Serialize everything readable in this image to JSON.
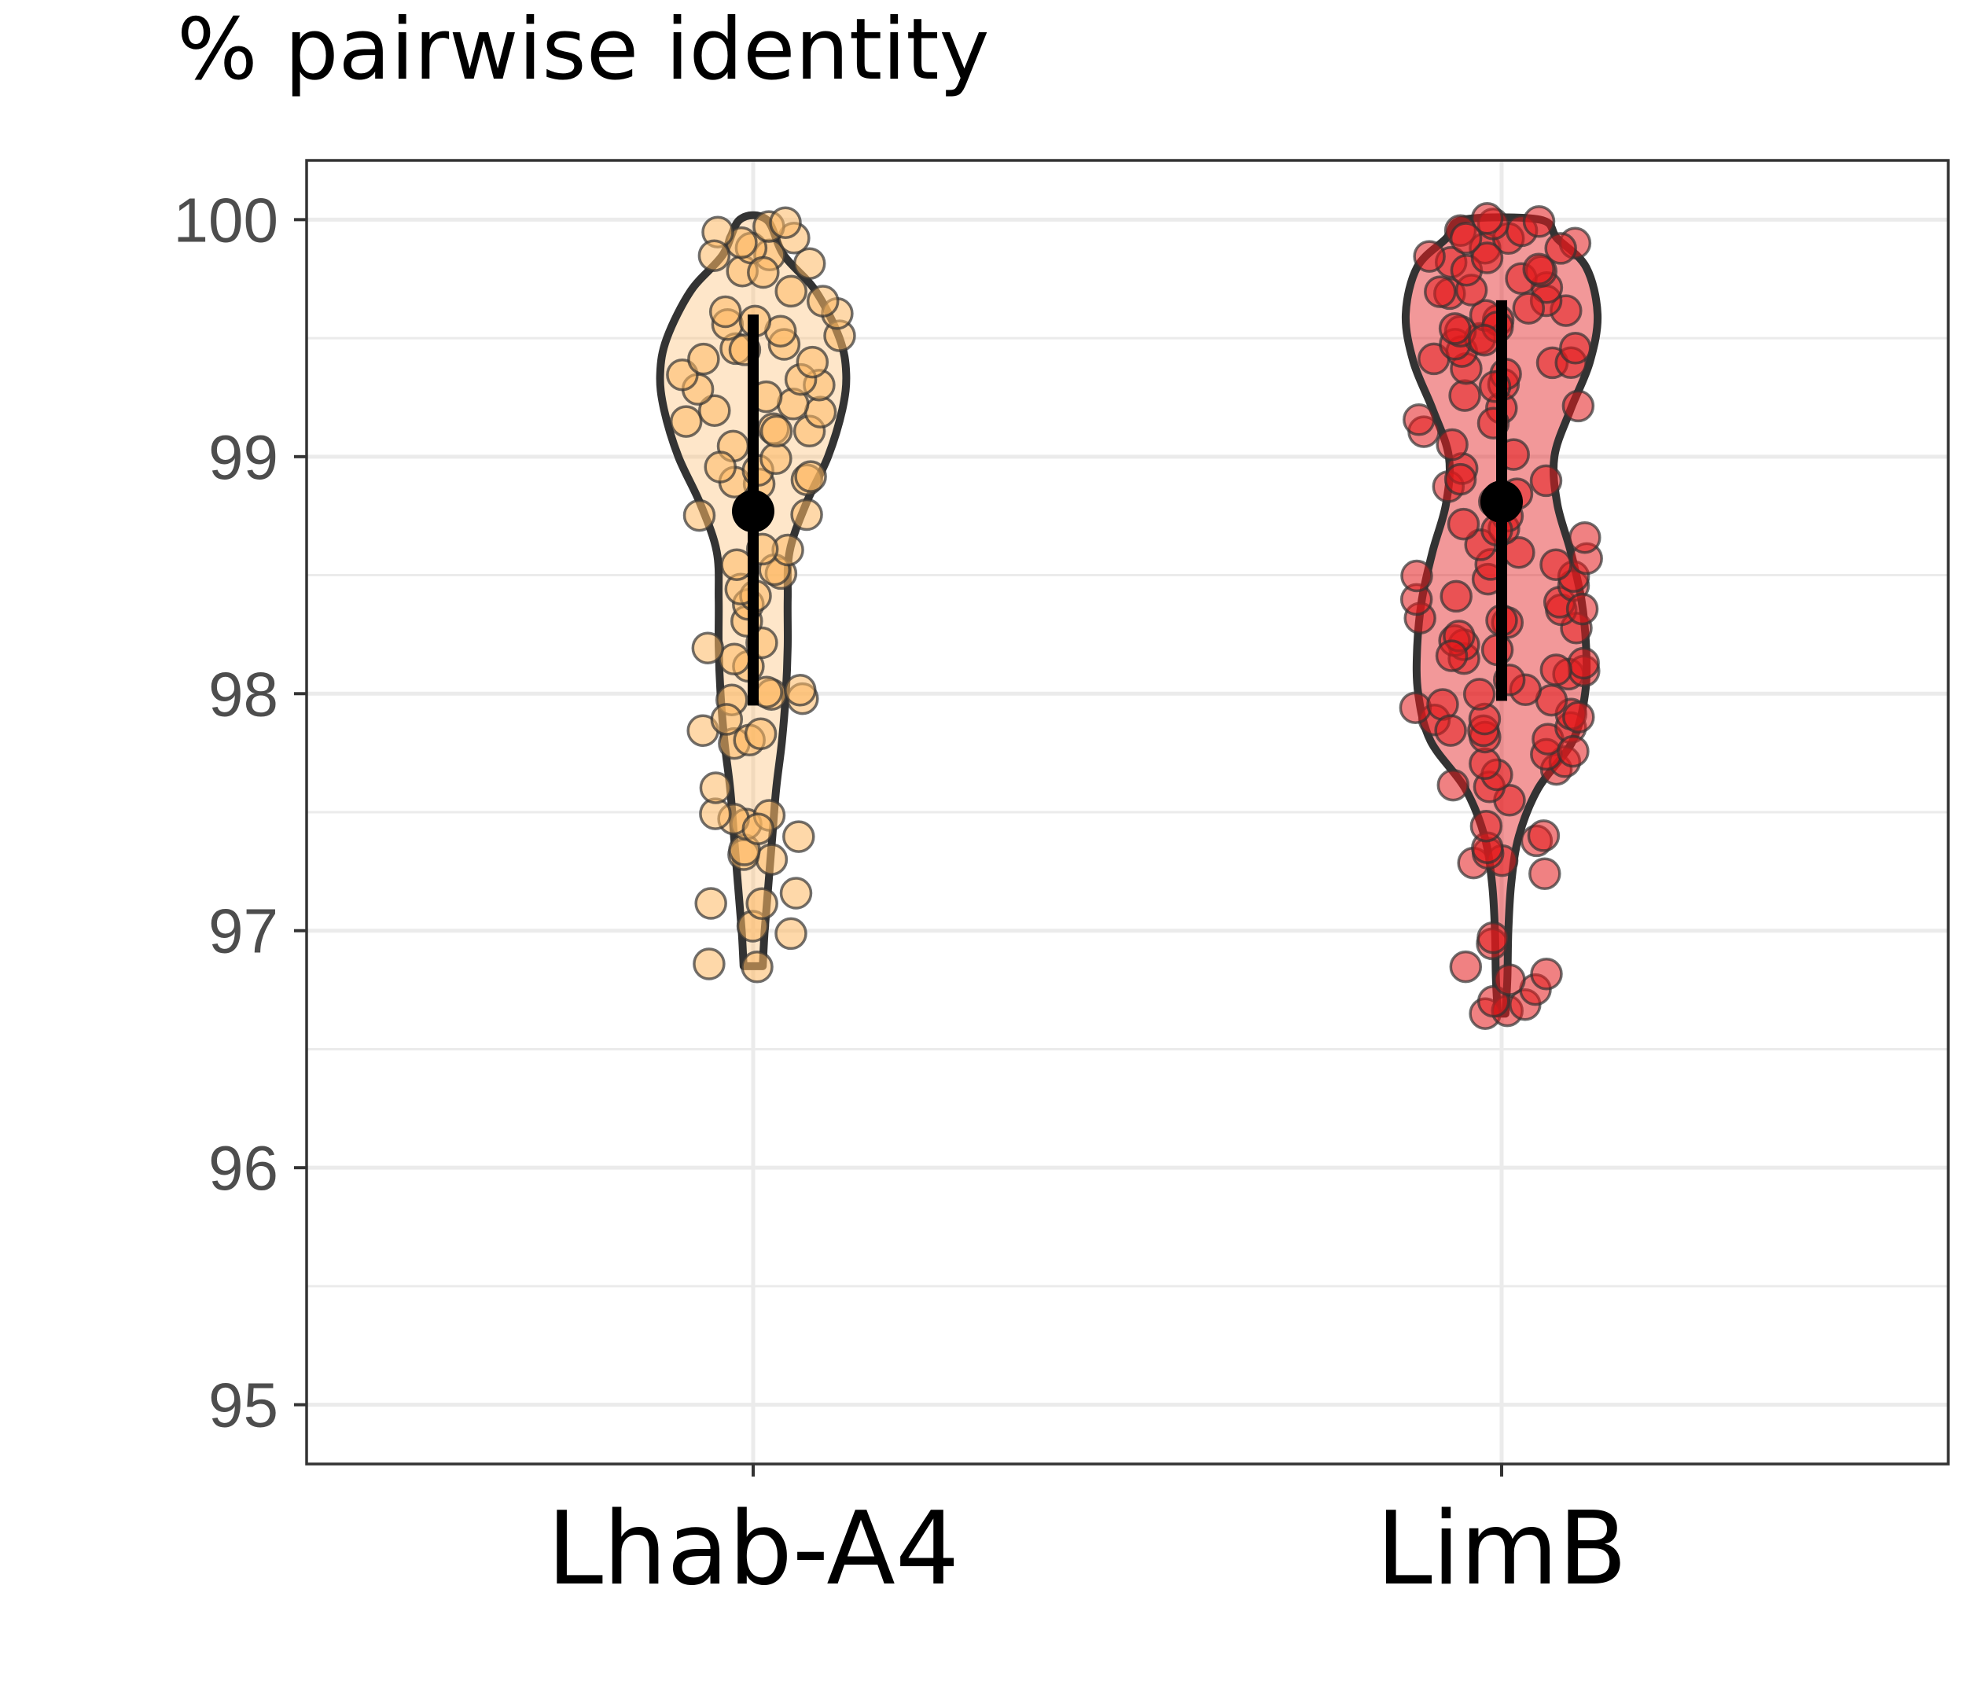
{
  "chart_data": {
    "type": "violin",
    "title": "% pairwise identity",
    "xlabel": "",
    "ylabel": "",
    "categories": [
      "Lhab-A4",
      "LimB"
    ],
    "ylim": [
      94.75,
      100.25
    ],
    "yticks": [
      95,
      96,
      97,
      98,
      99,
      100
    ],
    "ytick_labels": [
      "95",
      "96",
      "97",
      "98",
      "99",
      "100"
    ],
    "grid": true,
    "legend": "none",
    "series": [
      {
        "category": "Lhab-A4",
        "color": "#fdb863",
        "fill_opacity": 0.35,
        "min": 96.85,
        "max": 100.0,
        "mean": 98.77,
        "sd_low": 97.95,
        "sd_high": 99.6,
        "density": [
          [
            96.85,
            0.1
          ],
          [
            97.0,
            0.12
          ],
          [
            97.2,
            0.16
          ],
          [
            97.4,
            0.2
          ],
          [
            97.6,
            0.24
          ],
          [
            97.8,
            0.3
          ],
          [
            98.0,
            0.34
          ],
          [
            98.2,
            0.36
          ],
          [
            98.4,
            0.36
          ],
          [
            98.6,
            0.38
          ],
          [
            98.8,
            0.55
          ],
          [
            99.0,
            0.78
          ],
          [
            99.2,
            0.93
          ],
          [
            99.35,
            0.97
          ],
          [
            99.5,
            0.9
          ],
          [
            99.7,
            0.65
          ],
          [
            99.85,
            0.32
          ],
          [
            100.0,
            0.14
          ]
        ],
        "points": [
          96.85,
          96.85,
          96.98,
          97.02,
          97.12,
          97.12,
          97.15,
          97.3,
          97.33,
          97.35,
          97.4,
          97.45,
          97.47,
          97.48,
          97.5,
          97.78,
          97.8,
          97.84,
          97.85,
          97.97,
          97.98,
          98.0,
          98.0,
          98.02,
          98.12,
          98.15,
          98.22,
          98.3,
          98.38,
          98.42,
          98.45,
          98.5,
          98.52,
          98.55,
          98.6,
          98.75,
          98.76,
          98.88,
          98.9,
          98.9,
          98.92,
          98.95,
          99.0,
          99.05,
          99.1,
          99.12,
          99.15,
          99.18,
          99.2,
          99.22,
          99.28,
          99.3,
          99.33,
          99.35,
          99.4,
          99.42,
          99.45,
          99.48,
          99.5,
          99.52,
          99.55,
          99.58,
          99.6,
          99.62,
          99.65,
          99.7,
          99.78,
          99.82,
          99.85,
          99.88,
          99.9,
          99.92,
          99.95,
          99.97,
          99.98,
          99.85,
          99.78,
          99.45,
          99.25,
          99.1,
          98.95,
          98.6,
          98.2,
          97.9,
          97.6,
          97.42
        ]
      },
      {
        "category": "LimB",
        "color": "#e31a1c",
        "fill_opacity": 0.45,
        "min": 96.65,
        "max": 100.0,
        "mean": 98.81,
        "sd_low": 97.97,
        "sd_high": 99.66,
        "density": [
          [
            96.65,
            0.04
          ],
          [
            96.8,
            0.06
          ],
          [
            97.0,
            0.07
          ],
          [
            97.2,
            0.1
          ],
          [
            97.4,
            0.18
          ],
          [
            97.6,
            0.38
          ],
          [
            97.8,
            0.74
          ],
          [
            98.0,
            0.87
          ],
          [
            98.2,
            0.88
          ],
          [
            98.4,
            0.83
          ],
          [
            98.6,
            0.72
          ],
          [
            98.8,
            0.58
          ],
          [
            99.0,
            0.55
          ],
          [
            99.2,
            0.72
          ],
          [
            99.4,
            0.92
          ],
          [
            99.6,
            1.0
          ],
          [
            99.8,
            0.88
          ],
          [
            99.92,
            0.58
          ],
          [
            100.0,
            0.4
          ]
        ],
        "points": [
          96.65,
          96.66,
          96.68,
          96.7,
          96.75,
          96.8,
          96.82,
          96.85,
          96.95,
          96.98,
          97.25,
          97.28,
          97.3,
          97.32,
          97.35,
          97.38,
          97.4,
          97.45,
          97.55,
          97.6,
          97.62,
          97.65,
          97.68,
          97.7,
          97.72,
          97.75,
          97.8,
          97.82,
          97.84,
          97.85,
          97.88,
          97.9,
          97.92,
          97.95,
          97.97,
          98.0,
          98.02,
          98.05,
          98.08,
          98.1,
          98.12,
          98.15,
          98.18,
          98.2,
          98.22,
          98.25,
          98.28,
          98.3,
          98.32,
          98.35,
          98.38,
          98.4,
          98.42,
          98.45,
          98.48,
          98.5,
          98.55,
          98.58,
          98.6,
          98.62,
          98.65,
          98.7,
          98.75,
          98.8,
          98.85,
          98.88,
          98.9,
          98.95,
          99.0,
          99.05,
          99.1,
          99.15,
          99.2,
          99.22,
          99.25,
          99.3,
          99.35,
          99.38,
          99.4,
          99.42,
          99.45,
          99.48,
          99.5,
          99.52,
          99.55,
          99.58,
          99.6,
          99.62,
          99.65,
          99.68,
          99.7,
          99.72,
          99.75,
          99.78,
          99.8,
          99.82,
          99.85,
          99.88,
          99.9,
          99.92,
          99.95,
          99.98,
          100.0,
          100.0,
          99.96,
          99.87,
          99.7,
          99.55,
          99.4,
          99.3,
          99.15,
          98.9,
          98.7,
          98.5,
          98.3,
          98.1,
          97.95,
          97.85,
          97.75,
          97.9,
          98.15,
          98.35,
          98.55,
          98.72,
          99.45,
          99.62,
          99.78,
          99.84,
          99.93,
          99.5
        ]
      }
    ]
  }
}
